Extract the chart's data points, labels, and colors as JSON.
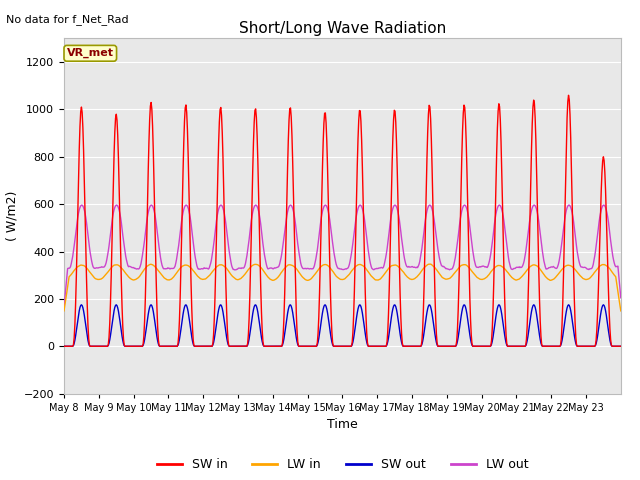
{
  "title": "Short/Long Wave Radiation",
  "xlabel": "Time",
  "ylabel": "( W/m2)",
  "ylim": [
    -200,
    1300
  ],
  "yticks": [
    -200,
    0,
    200,
    400,
    600,
    800,
    1000,
    1200
  ],
  "num_days": 16,
  "annotation_text": "No data for f_Net_Rad",
  "legend_box_text": "VR_met",
  "legend_box_color": "#ffffcc",
  "legend_box_edge_color": "#999900",
  "colors": {
    "SW_in": "#ff0000",
    "LW_in": "#ffa500",
    "SW_out": "#0000cc",
    "LW_out": "#cc44cc"
  },
  "fig_bg_color": "#ffffff",
  "plot_bg_color": "#e8e8e8",
  "grid_color": "#ffffff",
  "x_tick_labels": [
    "May 8",
    "May 9",
    "May 10",
    "May 11",
    "May 12",
    "May 13",
    "May 14",
    "May 15",
    "May 16",
    "May 17",
    "May 18",
    "May 19",
    "May 20",
    "May 21",
    "May 22",
    "May 23"
  ],
  "SW_in_peaks": [
    1010,
    980,
    1030,
    1020,
    1010,
    1005,
    1010,
    990,
    1000,
    1000,
    1020,
    1020,
    1025,
    1040,
    1060,
    800
  ],
  "LW_in_base": 275,
  "LW_in_peak": 350,
  "SW_out_peak": 175,
  "LW_out_base": 330,
  "LW_out_peak": 610,
  "title_fontsize": 11,
  "label_fontsize": 9,
  "tick_fontsize": 8,
  "legend_fontsize": 9
}
